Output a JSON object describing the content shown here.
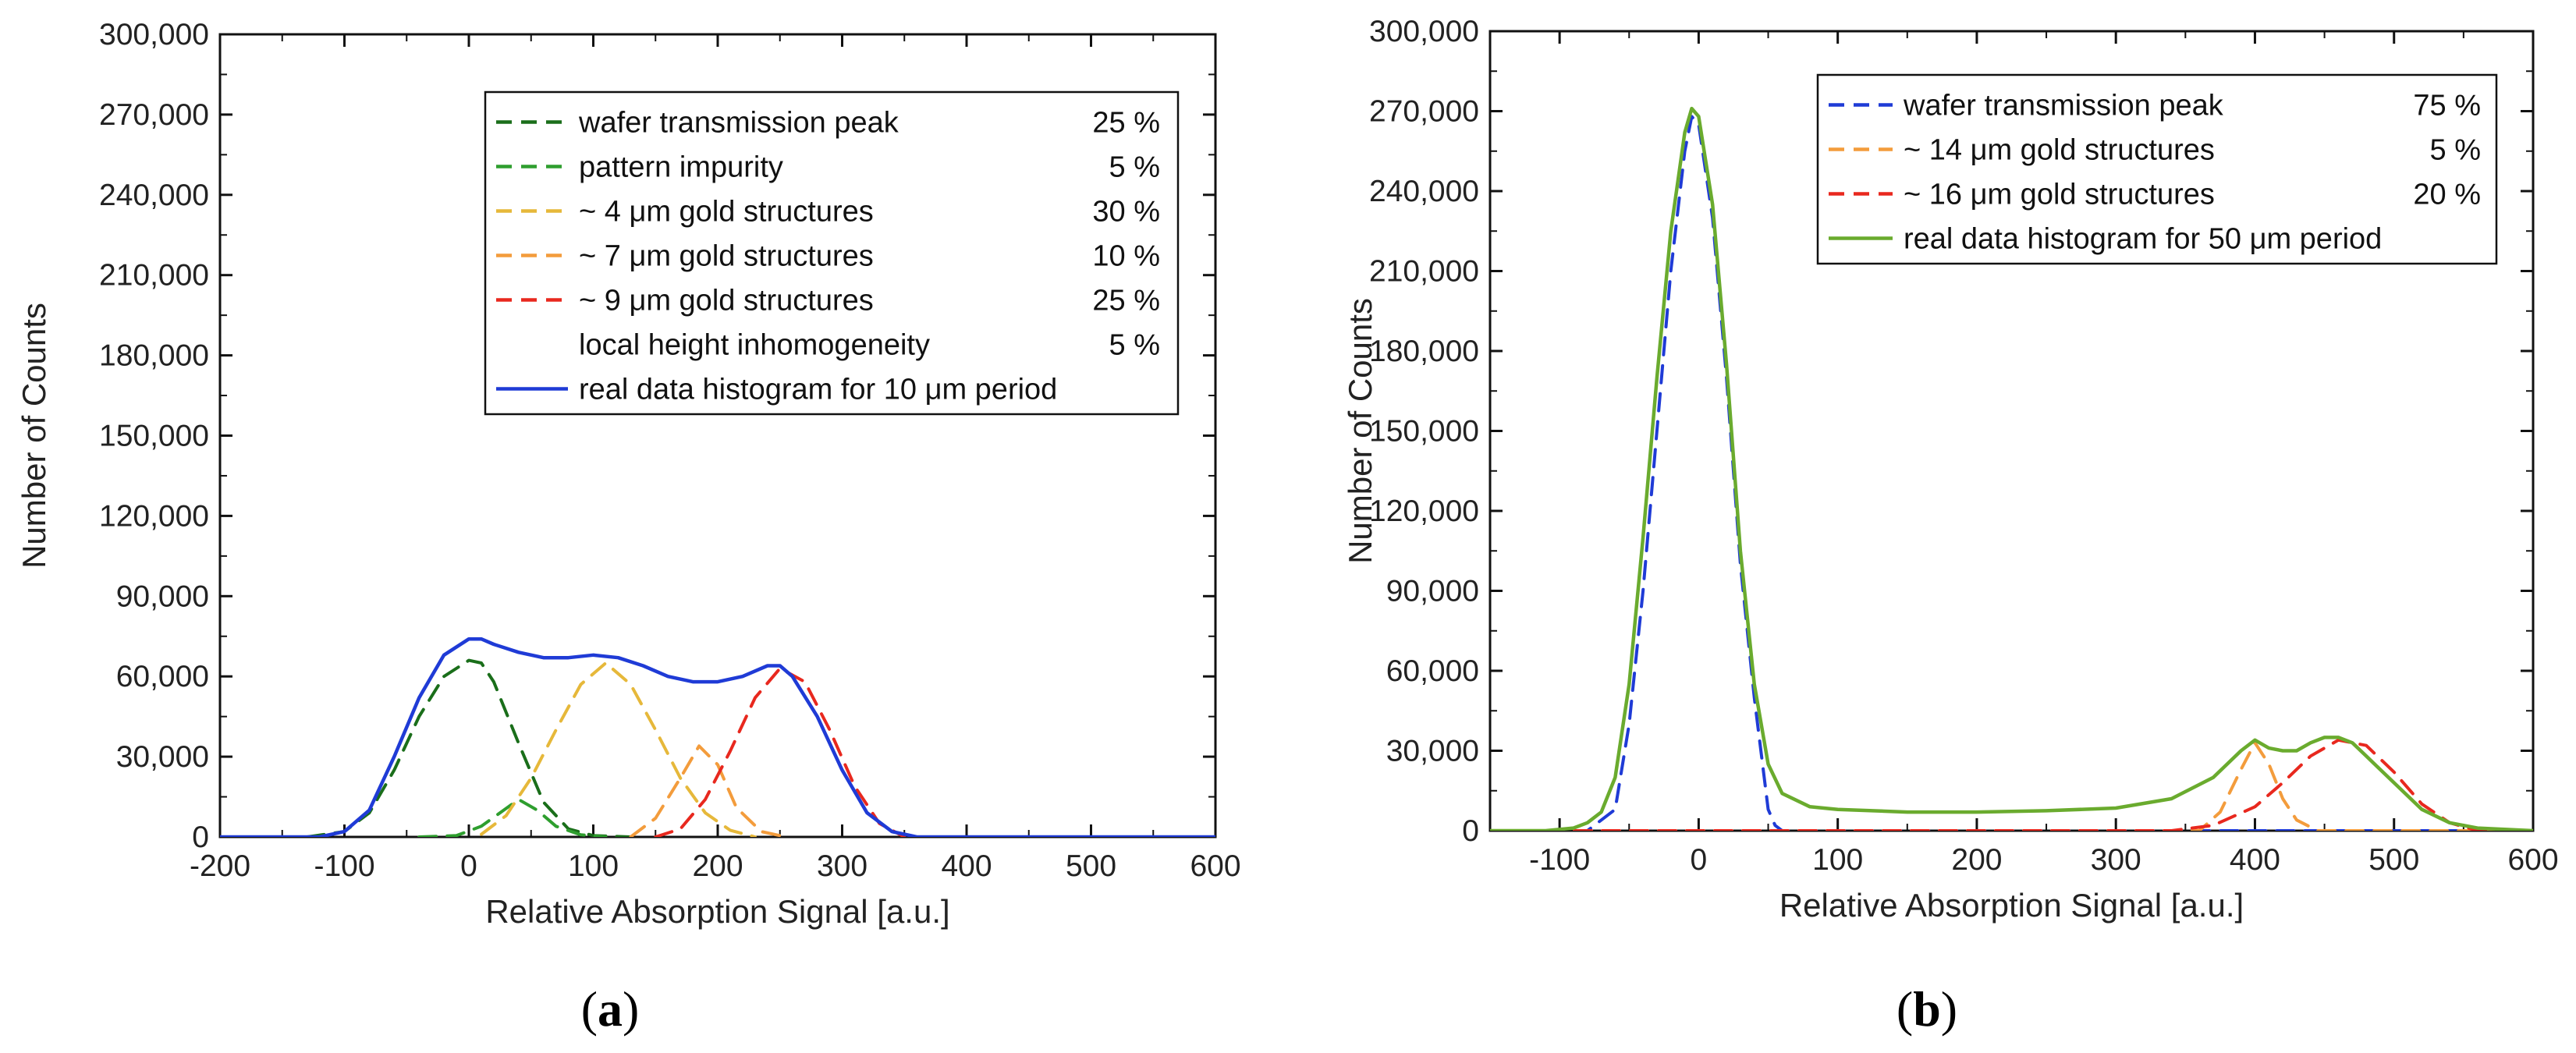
{
  "chart_data": [
    {
      "type": "line",
      "panel_label": "a",
      "xlabel": "Relative Absorption Signal [a.u.]",
      "ylabel": "Number of Counts",
      "xlim": [
        -200,
        600
      ],
      "ylim": [
        0,
        300000
      ],
      "x_ticks": [
        "-200",
        "-100",
        "0",
        "100",
        "200",
        "300",
        "400",
        "500",
        "600"
      ],
      "y_ticks": [
        "0",
        "30,000",
        "60,000",
        "90,000",
        "120,000",
        "150,000",
        "180,000",
        "210,000",
        "240,000",
        "270,000",
        "300,000"
      ],
      "legend_position": "top-right",
      "legend": [
        {
          "label": "wafer transmission peak",
          "percent": "25 %",
          "color": "#1a6e1a",
          "style": "dashed"
        },
        {
          "label": "pattern impurity",
          "percent": "5 %",
          "color": "#2e9e2e",
          "style": "dashed"
        },
        {
          "label": "~ 4 μm gold structures",
          "percent": "30 %",
          "color": "#e6b83a",
          "style": "dashed"
        },
        {
          "label": "~ 7 μm gold structures",
          "percent": "10 %",
          "color": "#f39c3c",
          "style": "dashed"
        },
        {
          "label": "~ 9 μm gold structures",
          "percent": "25 %",
          "color": "#e8281e",
          "style": "dashed"
        },
        {
          "label": "local height inhomogeneity",
          "percent": "5 %",
          "color": "",
          "style": "none"
        },
        {
          "label": "real data histogram for 10 μm period",
          "percent": "",
          "color": "#1f3bd6",
          "style": "solid"
        }
      ],
      "series": [
        {
          "name": "wafer transmission peak",
          "color": "#1a6e1a",
          "dash": true,
          "x": [
            -130,
            -100,
            -80,
            -60,
            -40,
            -20,
            0,
            10,
            20,
            40,
            60,
            80,
            100,
            130
          ],
          "y": [
            0,
            2000,
            9000,
            25000,
            45000,
            60000,
            66000,
            65000,
            58000,
            35000,
            13000,
            3000,
            500,
            0
          ]
        },
        {
          "name": "pattern impurity",
          "color": "#2e9e2e",
          "dash": true,
          "x": [
            -40,
            -10,
            10,
            25,
            40,
            55,
            70,
            90,
            110
          ],
          "y": [
            0,
            500,
            4000,
            9000,
            14000,
            10000,
            4000,
            800,
            0
          ]
        },
        {
          "name": "~ 4 μm gold structures",
          "color": "#e6b83a",
          "dash": true,
          "x": [
            10,
            30,
            50,
            70,
            90,
            110,
            130,
            150,
            170,
            190,
            210,
            230
          ],
          "y": [
            1000,
            8000,
            22000,
            40000,
            57000,
            65000,
            57000,
            40000,
            22000,
            9000,
            2500,
            0
          ]
        },
        {
          "name": "~ 7 μm gold structures",
          "color": "#f39c3c",
          "dash": true,
          "x": [
            130,
            150,
            170,
            185,
            200,
            215,
            235,
            255
          ],
          "y": [
            0,
            7000,
            22000,
            34000,
            27000,
            11000,
            2000,
            0
          ]
        },
        {
          "name": "~ 9 μm gold structures",
          "color": "#e8281e",
          "dash": true,
          "x": [
            150,
            170,
            190,
            210,
            230,
            250,
            270,
            290,
            310,
            330,
            350
          ],
          "y": [
            0,
            3000,
            14000,
            32000,
            52000,
            63000,
            58000,
            40000,
            19000,
            5000,
            0
          ]
        },
        {
          "name": "real data histogram for 10 μm period",
          "color": "#1f3bd6",
          "dash": false,
          "x": [
            -200,
            -120,
            -100,
            -80,
            -60,
            -40,
            -20,
            0,
            10,
            20,
            40,
            60,
            80,
            100,
            120,
            140,
            160,
            180,
            200,
            220,
            240,
            250,
            260,
            280,
            300,
            320,
            340,
            360,
            600
          ],
          "y": [
            0,
            0,
            2000,
            10000,
            30000,
            52000,
            68000,
            74000,
            74000,
            72000,
            69000,
            67000,
            67000,
            68000,
            67000,
            64000,
            60000,
            58000,
            58000,
            60000,
            64000,
            64000,
            60000,
            45000,
            25000,
            9000,
            2000,
            0,
            0
          ]
        }
      ]
    },
    {
      "type": "line",
      "panel_label": "b",
      "xlabel": "Relative Absorption Signal [a.u.]",
      "ylabel": "Number of Counts",
      "xlim": [
        -150,
        600
      ],
      "ylim": [
        0,
        300000
      ],
      "x_ticks": [
        "-100",
        "0",
        "100",
        "200",
        "300",
        "400",
        "500",
        "600"
      ],
      "x_tick_values": [
        -100,
        0,
        100,
        200,
        300,
        400,
        500,
        600
      ],
      "y_ticks": [
        "0",
        "30,000",
        "60,000",
        "90,000",
        "120,000",
        "150,000",
        "180,000",
        "210,000",
        "240,000",
        "270,000",
        "300,000"
      ],
      "legend_position": "top-right",
      "legend": [
        {
          "label": "wafer transmission peak",
          "percent": "75 %",
          "color": "#1f3bd6",
          "style": "dashed"
        },
        {
          "label": "~ 14 μm gold structures",
          "percent": "5 %",
          "color": "#f39c3c",
          "style": "dashed"
        },
        {
          "label": "~ 16 μm gold structures",
          "percent": "20 %",
          "color": "#e8281e",
          "style": "dashed"
        },
        {
          "label": "real data histogram for 50 μm period",
          "percent": "",
          "color": "#6aab2e",
          "style": "solid"
        }
      ],
      "series": [
        {
          "name": "wafer transmission peak",
          "color": "#1f3bd6",
          "dash": true,
          "x": [
            -150,
            -100,
            -80,
            -60,
            -50,
            -40,
            -30,
            -20,
            -10,
            -5,
            0,
            10,
            20,
            30,
            40,
            50,
            55,
            60,
            600
          ],
          "y": [
            0,
            0,
            0,
            8000,
            40000,
            90000,
            150000,
            210000,
            255000,
            268000,
            265000,
            230000,
            170000,
            100000,
            50000,
            8000,
            2000,
            0,
            0
          ]
        },
        {
          "name": "~ 14 μm gold structures",
          "color": "#f39c3c",
          "dash": true,
          "x": [
            -150,
            360,
            375,
            390,
            400,
            410,
            420,
            430,
            445,
            600
          ],
          "y": [
            0,
            0,
            7000,
            23000,
            33000,
            25000,
            12000,
            4000,
            0,
            0
          ]
        },
        {
          "name": "~ 16 μm gold structures",
          "color": "#e8281e",
          "dash": true,
          "x": [
            -150,
            340,
            370,
            400,
            420,
            440,
            460,
            480,
            500,
            520,
            540,
            560,
            600
          ],
          "y": [
            0,
            0,
            2000,
            9000,
            18000,
            28000,
            34000,
            32000,
            22000,
            10000,
            3000,
            0,
            0
          ]
        },
        {
          "name": "real data histogram for 50 μm period",
          "color": "#6aab2e",
          "dash": false,
          "x": [
            -150,
            -110,
            -90,
            -80,
            -70,
            -60,
            -50,
            -40,
            -30,
            -20,
            -10,
            -5,
            0,
            10,
            20,
            30,
            40,
            50,
            60,
            80,
            100,
            150,
            200,
            250,
            300,
            340,
            370,
            390,
            400,
            410,
            420,
            430,
            440,
            450,
            460,
            470,
            480,
            500,
            520,
            540,
            560,
            600
          ],
          "y": [
            0,
            0,
            1000,
            3000,
            7000,
            20000,
            55000,
            110000,
            170000,
            225000,
            262000,
            271000,
            268000,
            235000,
            175000,
            105000,
            55000,
            25000,
            14000,
            9000,
            8000,
            7000,
            7000,
            7500,
            8500,
            12000,
            20000,
            30000,
            34000,
            31000,
            30000,
            30000,
            33000,
            35000,
            35000,
            33000,
            28000,
            18000,
            8000,
            3000,
            1000,
            0
          ]
        }
      ]
    }
  ]
}
